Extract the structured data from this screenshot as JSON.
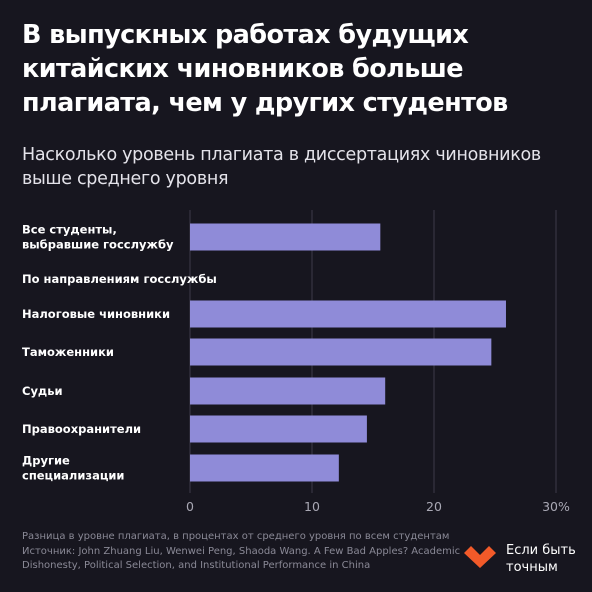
{
  "header": {
    "title": "В выпускных работах будущих китайских чиновников больше плагиата, чем у других студентов",
    "subtitle": "Насколько уровень плагиата в диссертациях чиновников выше среднего уровня"
  },
  "chart_data": {
    "type": "bar",
    "orientation": "horizontal",
    "title": "",
    "xlabel": "",
    "ylabel": "",
    "xlim": [
      0,
      30
    ],
    "x_ticks": [
      "0",
      "10",
      "20",
      "30%"
    ],
    "x_tick_values": [
      0,
      10,
      20,
      30
    ],
    "grid": true,
    "group_label": "По направлениям госслужбы",
    "categories": [
      "Все студенты, выбравшие госслужбу",
      "Налоговые чиновники",
      "Таможенники",
      "Судьи",
      "Правоохранители",
      "Другие специализации"
    ],
    "category_lines": [
      [
        "Все студенты,",
        "выбравшие госслужбу"
      ],
      [
        "Налоговые чиновники"
      ],
      [
        "Таможенники"
      ],
      [
        "Судьи"
      ],
      [
        "Правоохранители"
      ],
      [
        "Другие",
        "специализации"
      ]
    ],
    "values": [
      15.6,
      25.9,
      24.7,
      16.0,
      14.5,
      12.2
    ],
    "bar_color": "#8f8bd8",
    "grid_color": "#3c3b48"
  },
  "footer": {
    "note": "Разница в уровне плагиата, в процентах от среднего уровня по всем студентам",
    "source": "Источник: John Zhuang Liu, Wenwei Peng, Shaoda Wang. A Few Bad Apples? Academic Dishonesty, Political Selection, and Institutional Performance in China"
  },
  "brand": {
    "name": "Если быть точным",
    "logo_icon": "heart-check-icon",
    "accent": "#f25a29"
  }
}
